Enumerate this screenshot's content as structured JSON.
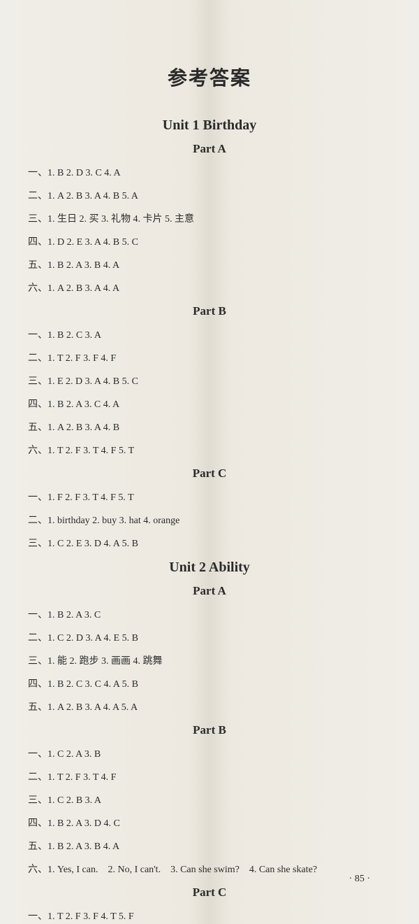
{
  "mainTitle": "参考答案",
  "pageNumber": "· 85 ·",
  "units": [
    {
      "title": "Unit 1   Birthday",
      "parts": [
        {
          "title": "Part A",
          "lines": [
            "一、1. B   2. D   3. C   4. A",
            "二、1. A   2. B   3. A   4. B   5. A",
            "三、1. 生日   2. 买   3. 礼物   4. 卡片   5. 主意",
            "四、1. D   2. E   3. A   4. B   5. C",
            "五、1. B   2. A   3. B   4. A",
            "六、1. A   2. B   3. A   4. A"
          ]
        },
        {
          "title": "Part B",
          "lines": [
            "一、1. B   2. C   3. A",
            "二、1. T   2. F   3. F   4. F",
            "三、1. E   2. D   3. A   4. B   5. C",
            "四、1. B   2. A   3. C   4. A",
            "五、1. A   2. B   3. A   4. B",
            "六、1. T   2. F   3. T   4. F   5. T"
          ]
        },
        {
          "title": "Part C",
          "lines": [
            "一、1. F   2. F   3. T   4. F   5. T",
            "二、1. birthday   2. buy   3. hat   4. orange",
            "三、1. C   2. E   3. D   4. A   5. B"
          ]
        }
      ]
    },
    {
      "title": "Unit 2    Ability",
      "parts": [
        {
          "title": "Part A",
          "lines": [
            "一、1. B   2. A   3. C",
            "二、1. C   2. D   3. A   4. E   5. B",
            "三、1. 能   2. 跑步   3. 画画   4. 跳舞",
            "四、1. B   2. C   3. C   4. A   5. B",
            "五、1. A   2. B   3. A   4. A   5. A"
          ]
        },
        {
          "title": "Part B",
          "lines": [
            "一、1. C   2. A   3. B",
            "二、1. T   2. F   3. T   4. F",
            "三、1. C   2. B   3. A",
            "四、1. B   2. A   3. D   4. C",
            "五、1. B   2. A   3. B   4. A",
            "六、1. Yes, I can.　2. No, I can't.　3. Can she swim?　4. Can she skate?"
          ]
        },
        {
          "title": "Part C",
          "lines": [
            "一、1. T   2. F   3. F   4. T   5. F"
          ]
        }
      ]
    }
  ]
}
